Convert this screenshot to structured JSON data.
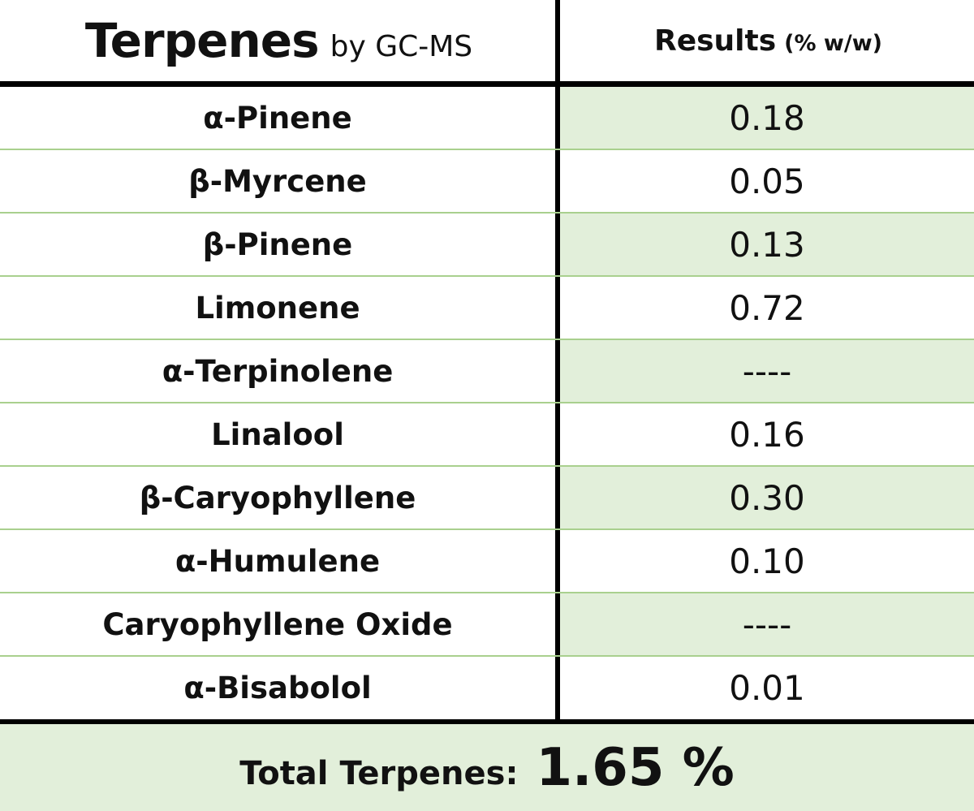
{
  "header": {
    "title": "Terpenes",
    "subtitle": "by GC-MS",
    "results_label": "Results",
    "results_unit": "(% w/w)"
  },
  "rows": [
    {
      "name": "α-Pinene",
      "value": "0.18"
    },
    {
      "name": "β-Myrcene",
      "value": "0.05"
    },
    {
      "name": "β-Pinene",
      "value": "0.13"
    },
    {
      "name": "Limonene",
      "value": "0.72"
    },
    {
      "name": "α-Terpinolene",
      "value": "----"
    },
    {
      "name": "Linalool",
      "value": "0.16"
    },
    {
      "name": "β-Caryophyllene",
      "value": "0.30"
    },
    {
      "name": "α-Humulene",
      "value": "0.10"
    },
    {
      "name": "Caryophyllene Oxide",
      "value": "----"
    },
    {
      "name": "α-Bisabolol",
      "value": "0.01"
    }
  ],
  "footer": {
    "total_label": "Total Terpenes:",
    "total_value": "1.65 %"
  },
  "colors": {
    "row_fill": "#e2efda",
    "row_divider": "#a9d08e",
    "border": "#000000"
  }
}
